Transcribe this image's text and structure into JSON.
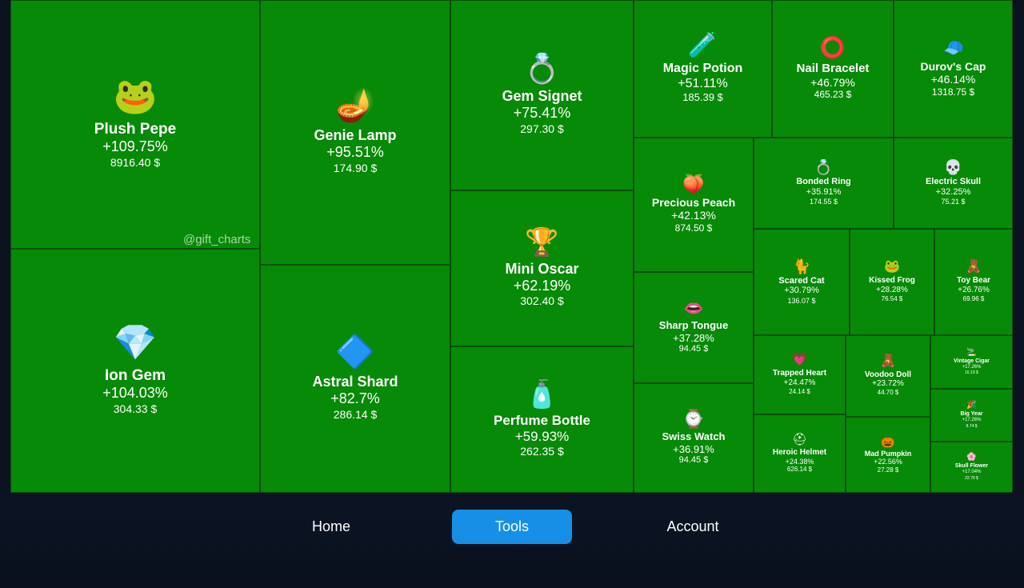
{
  "watermark": "@gift_charts",
  "colors": {
    "tile": "#078a07",
    "nav_active": "#1690e6",
    "background": "#0b1220"
  },
  "tiles": [
    {
      "name": "Plush Pepe",
      "change": "+109.75%",
      "price": "8916.40 $",
      "icon": "plush-pepe-icon",
      "glyph": "🐸"
    },
    {
      "name": "Ion Gem",
      "change": "+104.03%",
      "price": "304.33 $",
      "icon": "ion-gem-icon",
      "glyph": "💎"
    },
    {
      "name": "Genie Lamp",
      "change": "+95.51%",
      "price": "174.90 $",
      "icon": "genie-lamp-icon",
      "glyph": "🪔"
    },
    {
      "name": "Astral Shard",
      "change": "+82.7%",
      "price": "286.14 $",
      "icon": "astral-shard-icon",
      "glyph": "🔷"
    },
    {
      "name": "Gem Signet",
      "change": "+75.41%",
      "price": "297.30 $",
      "icon": "gem-signet-icon",
      "glyph": "💍"
    },
    {
      "name": "Mini Oscar",
      "change": "+62.19%",
      "price": "302.40 $",
      "icon": "mini-oscar-icon",
      "glyph": "🏆"
    },
    {
      "name": "Perfume Bottle",
      "change": "+59.93%",
      "price": "262.35 $",
      "icon": "perfume-bottle-icon",
      "glyph": "🧴"
    },
    {
      "name": "Magic Potion",
      "change": "+51.11%",
      "price": "185.39 $",
      "icon": "magic-potion-icon",
      "glyph": "🧪"
    },
    {
      "name": "Nail Bracelet",
      "change": "+46.79%",
      "price": "465.23 $",
      "icon": "nail-bracelet-icon",
      "glyph": "⭕"
    },
    {
      "name": "Durov's Cap",
      "change": "+46.14%",
      "price": "1318.75 $",
      "icon": "durovs-cap-icon",
      "glyph": "🧢"
    },
    {
      "name": "Precious Peach",
      "change": "+42.13%",
      "price": "874.50 $",
      "icon": "precious-peach-icon",
      "glyph": "🍑"
    },
    {
      "name": "Bonded Ring",
      "change": "+35.91%",
      "price": "174.55 $",
      "icon": "bonded-ring-icon",
      "glyph": "💍"
    },
    {
      "name": "Electric Skull",
      "change": "+32.25%",
      "price": "75.21 $",
      "icon": "electric-skull-icon",
      "glyph": "💀"
    },
    {
      "name": "Sharp Tongue",
      "change": "+37.28%",
      "price": "94.45 $",
      "icon": "sharp-tongue-icon",
      "glyph": "👄"
    },
    {
      "name": "Scared Cat",
      "change": "+30.79%",
      "price": "136.07 $",
      "icon": "scared-cat-icon",
      "glyph": "🐈"
    },
    {
      "name": "Kissed Frog",
      "change": "+28.28%",
      "price": "76.54 $",
      "icon": "kissed-frog-icon",
      "glyph": "🐸"
    },
    {
      "name": "Toy Bear",
      "change": "+26.76%",
      "price": "69.96 $",
      "icon": "toy-bear-icon",
      "glyph": "🧸"
    },
    {
      "name": "Swiss Watch",
      "change": "+36.91%",
      "price": "94.45 $",
      "icon": "swiss-watch-icon",
      "glyph": "⌚"
    },
    {
      "name": "Trapped Heart",
      "change": "+24.47%",
      "price": "24.14 $",
      "icon": "trapped-heart-icon",
      "glyph": "💗"
    },
    {
      "name": "Voodoo Doll",
      "change": "+23.72%",
      "price": "44.70 $",
      "icon": "voodoo-doll-icon",
      "glyph": "🧸"
    },
    {
      "name": "Vintage Cigar",
      "change": "+17.26%",
      "price": "16.19 $",
      "icon": "vintage-cigar-icon",
      "glyph": "🚬"
    },
    {
      "name": "Big Year",
      "change": "+17.26%",
      "price": "8.74 $",
      "icon": "big-year-icon",
      "glyph": "🎉"
    },
    {
      "name": "Heroic Helmet",
      "change": "+24.38%",
      "price": "626.14 $",
      "icon": "heroic-helmet-icon",
      "glyph": "⛑"
    },
    {
      "name": "Mad Pumpkin",
      "change": "+22.56%",
      "price": "27.28 $",
      "icon": "mad-pumpkin-icon",
      "glyph": "🎃"
    },
    {
      "name": "Skull Flower",
      "change": "+17.04%",
      "price": "22.79 $",
      "icon": "skull-flower-icon",
      "glyph": "🌸"
    }
  ],
  "nav": [
    {
      "label": "Home",
      "active": false
    },
    {
      "label": "Tools",
      "active": true
    },
    {
      "label": "Account",
      "active": false
    }
  ]
}
